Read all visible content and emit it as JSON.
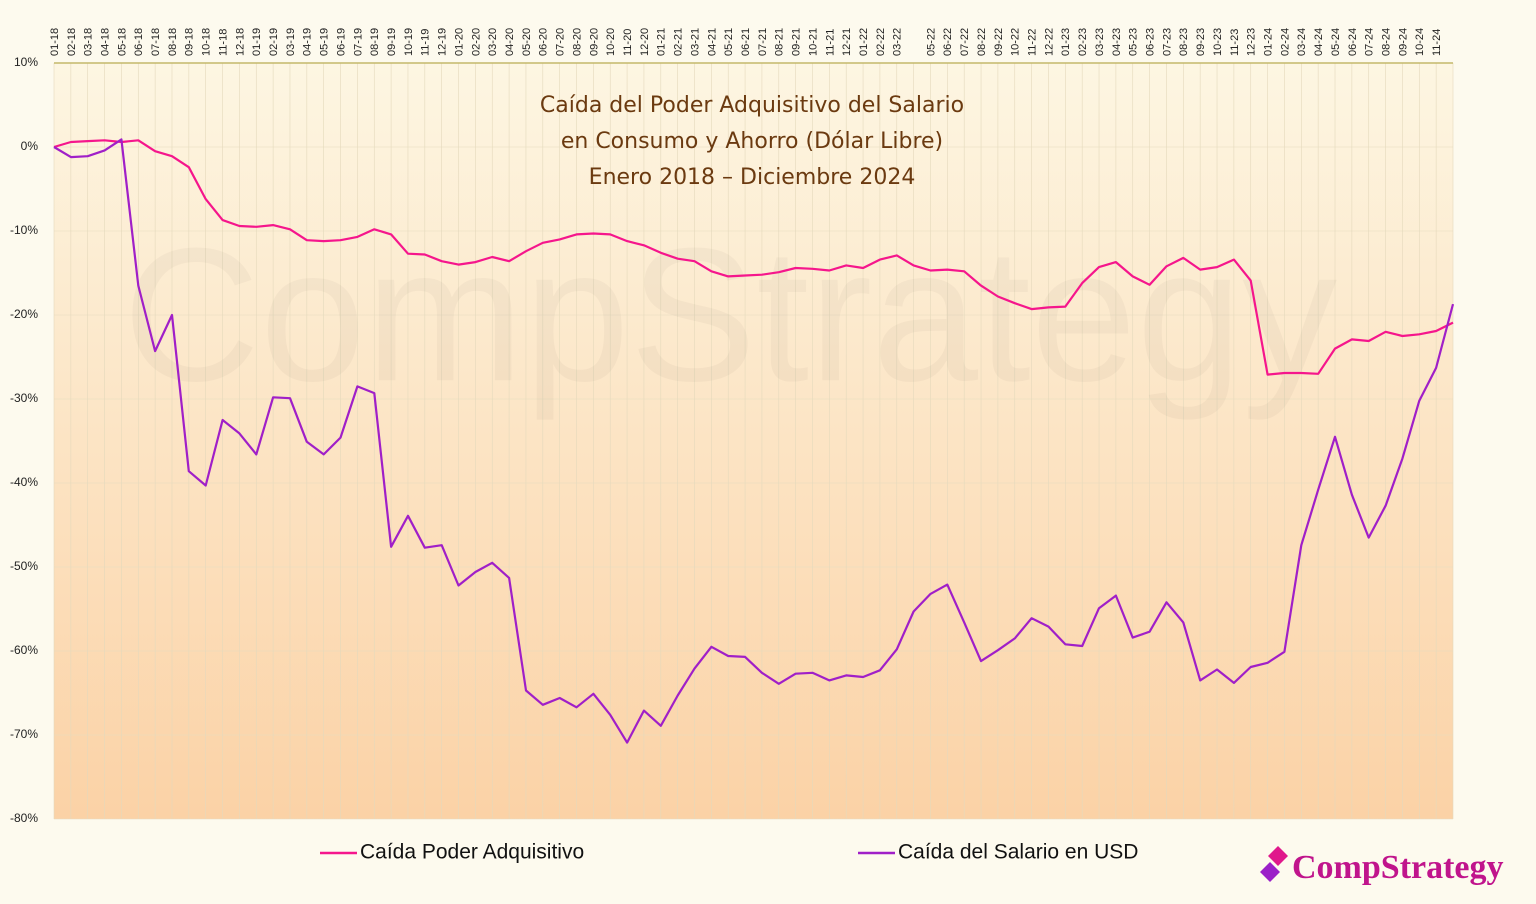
{
  "chart_data": {
    "type": "line",
    "title": [
      "Caída del Poder Adquisitivo del Salario",
      "en Consumo y Ahorro (Dólar Libre)",
      "Enero 2018 – Diciembre 2024"
    ],
    "watermark": "CompStrategy",
    "categories": [
      "01-18",
      "02-18",
      "03-18",
      "04-18",
      "05-18",
      "06-18",
      "07-18",
      "08-18",
      "09-18",
      "10-18",
      "11-18",
      "12-18",
      "01-19",
      "02-19",
      "03-19",
      "04-19",
      "05-19",
      "06-19",
      "07-19",
      "08-19",
      "09-19",
      "10-19",
      "11-19",
      "12-19",
      "01-20",
      "02-20",
      "03-20",
      "04-20",
      "05-20",
      "06-20",
      "07-20",
      "08-20",
      "09-20",
      "10-20",
      "11-20",
      "12-20",
      "01-21",
      "02-21",
      "03-21",
      "04-21",
      "05-21",
      "06-21",
      "07-21",
      "08-21",
      "09-21",
      "10-21",
      "11-21",
      "12-21",
      "01-22",
      "02-22",
      "03-22",
      null,
      "05-22",
      "06-22",
      "07-22",
      "08-22",
      "09-22",
      "10-22",
      "11-22",
      "12-22",
      "01-23",
      "02-23",
      "03-23",
      "04-23",
      "05-23",
      "06-23",
      "07-23",
      "08-23",
      "09-23",
      "10-23",
      "11-23",
      "12-23",
      "01-24",
      "02-24",
      "03-24",
      "04-24",
      "05-24",
      "06-24",
      "07-24",
      "08-24",
      "09-24",
      "10-24",
      "11-24",
      null
    ],
    "series": [
      {
        "name": "Caída Poder Adquisitivo",
        "color": "#f5168c",
        "values": [
          0,
          0.6,
          0.7,
          0.8,
          0.6,
          0.8,
          -0.5,
          -1.1,
          -2.4,
          -6.2,
          -8.7,
          -9.4,
          -9.5,
          -9.3,
          -9.8,
          -11.1,
          -11.2,
          -11.1,
          -10.7,
          -9.8,
          -10.4,
          -12.7,
          -12.8,
          -13.6,
          -14.0,
          -13.7,
          -13.1,
          -13.6,
          -12.4,
          -11.4,
          -11.0,
          -10.4,
          -10.3,
          -10.4,
          -11.2,
          -11.7,
          -12.6,
          -13.3,
          -13.6,
          -14.8,
          -15.4,
          -15.3,
          -15.2,
          -14.9,
          -14.4,
          -14.5,
          -14.7,
          -14.1,
          -14.4,
          -13.4,
          -12.9,
          -14.1,
          -14.7,
          -14.6,
          -14.8,
          -16.5,
          -17.8,
          -18.6,
          -19.3,
          -19.1,
          -19.0,
          -16.2,
          -14.3,
          -13.7,
          -15.4,
          -16.4,
          -14.2,
          -13.2,
          -14.6,
          -14.3,
          -13.4,
          -15.9,
          -27.1,
          -26.9,
          -26.9,
          -27.0,
          -24.0,
          -22.9,
          -23.1,
          -22.0,
          -22.5,
          -22.3,
          -21.9,
          -20.9
        ]
      },
      {
        "name": "Caída del Salario en USD",
        "color": "#a01fc8",
        "values": [
          0,
          -1.2,
          -1.1,
          -0.4,
          0.9,
          -16.5,
          -24.3,
          -20.0,
          -38.6,
          -40.3,
          -32.5,
          -34.1,
          -36.6,
          -29.8,
          -29.9,
          -35.1,
          -36.6,
          -34.6,
          -28.5,
          -29.3,
          -47.6,
          -43.9,
          -47.7,
          -47.4,
          -52.2,
          -50.6,
          -49.5,
          -51.3,
          -64.7,
          -66.4,
          -65.6,
          -66.7,
          -65.1,
          -67.6,
          -70.9,
          -67.1,
          -68.9,
          -65.3,
          -62.1,
          -59.5,
          -60.6,
          -60.7,
          -62.6,
          -63.9,
          -62.7,
          -62.6,
          -63.5,
          -62.9,
          -63.1,
          -62.3,
          -59.8,
          -55.3,
          -53.2,
          -52.1,
          -56.6,
          -61.2,
          -59.9,
          -58.5,
          -56.1,
          -57.1,
          -59.2,
          -59.4,
          -54.9,
          -53.4,
          -58.4,
          -57.7,
          -54.2,
          -56.6,
          -63.5,
          -62.2,
          -63.8,
          -61.9,
          -61.4,
          -60.1,
          -47.4,
          -40.8,
          -34.5,
          -41.4,
          -46.5,
          -42.7,
          -37.1,
          -30.2,
          -26.3,
          -18.7
        ]
      }
    ],
    "ylim": [
      -80,
      10
    ],
    "yticks": [
      {
        "value": -80,
        "label": "-80%"
      },
      {
        "value": -70,
        "label": "-70%"
      },
      {
        "value": -60,
        "label": "-60%"
      },
      {
        "value": -50,
        "label": "-50%"
      },
      {
        "value": -40,
        "label": "-40%"
      },
      {
        "value": -30,
        "label": "-30%"
      },
      {
        "value": -20,
        "label": "-20%"
      },
      {
        "value": -10,
        "label": "-10%"
      },
      {
        "value": 0,
        "label": "0%"
      },
      {
        "value": 10,
        "label": "10%"
      }
    ],
    "grid": true,
    "legend": "bottom"
  },
  "logo": "CompStrategy"
}
